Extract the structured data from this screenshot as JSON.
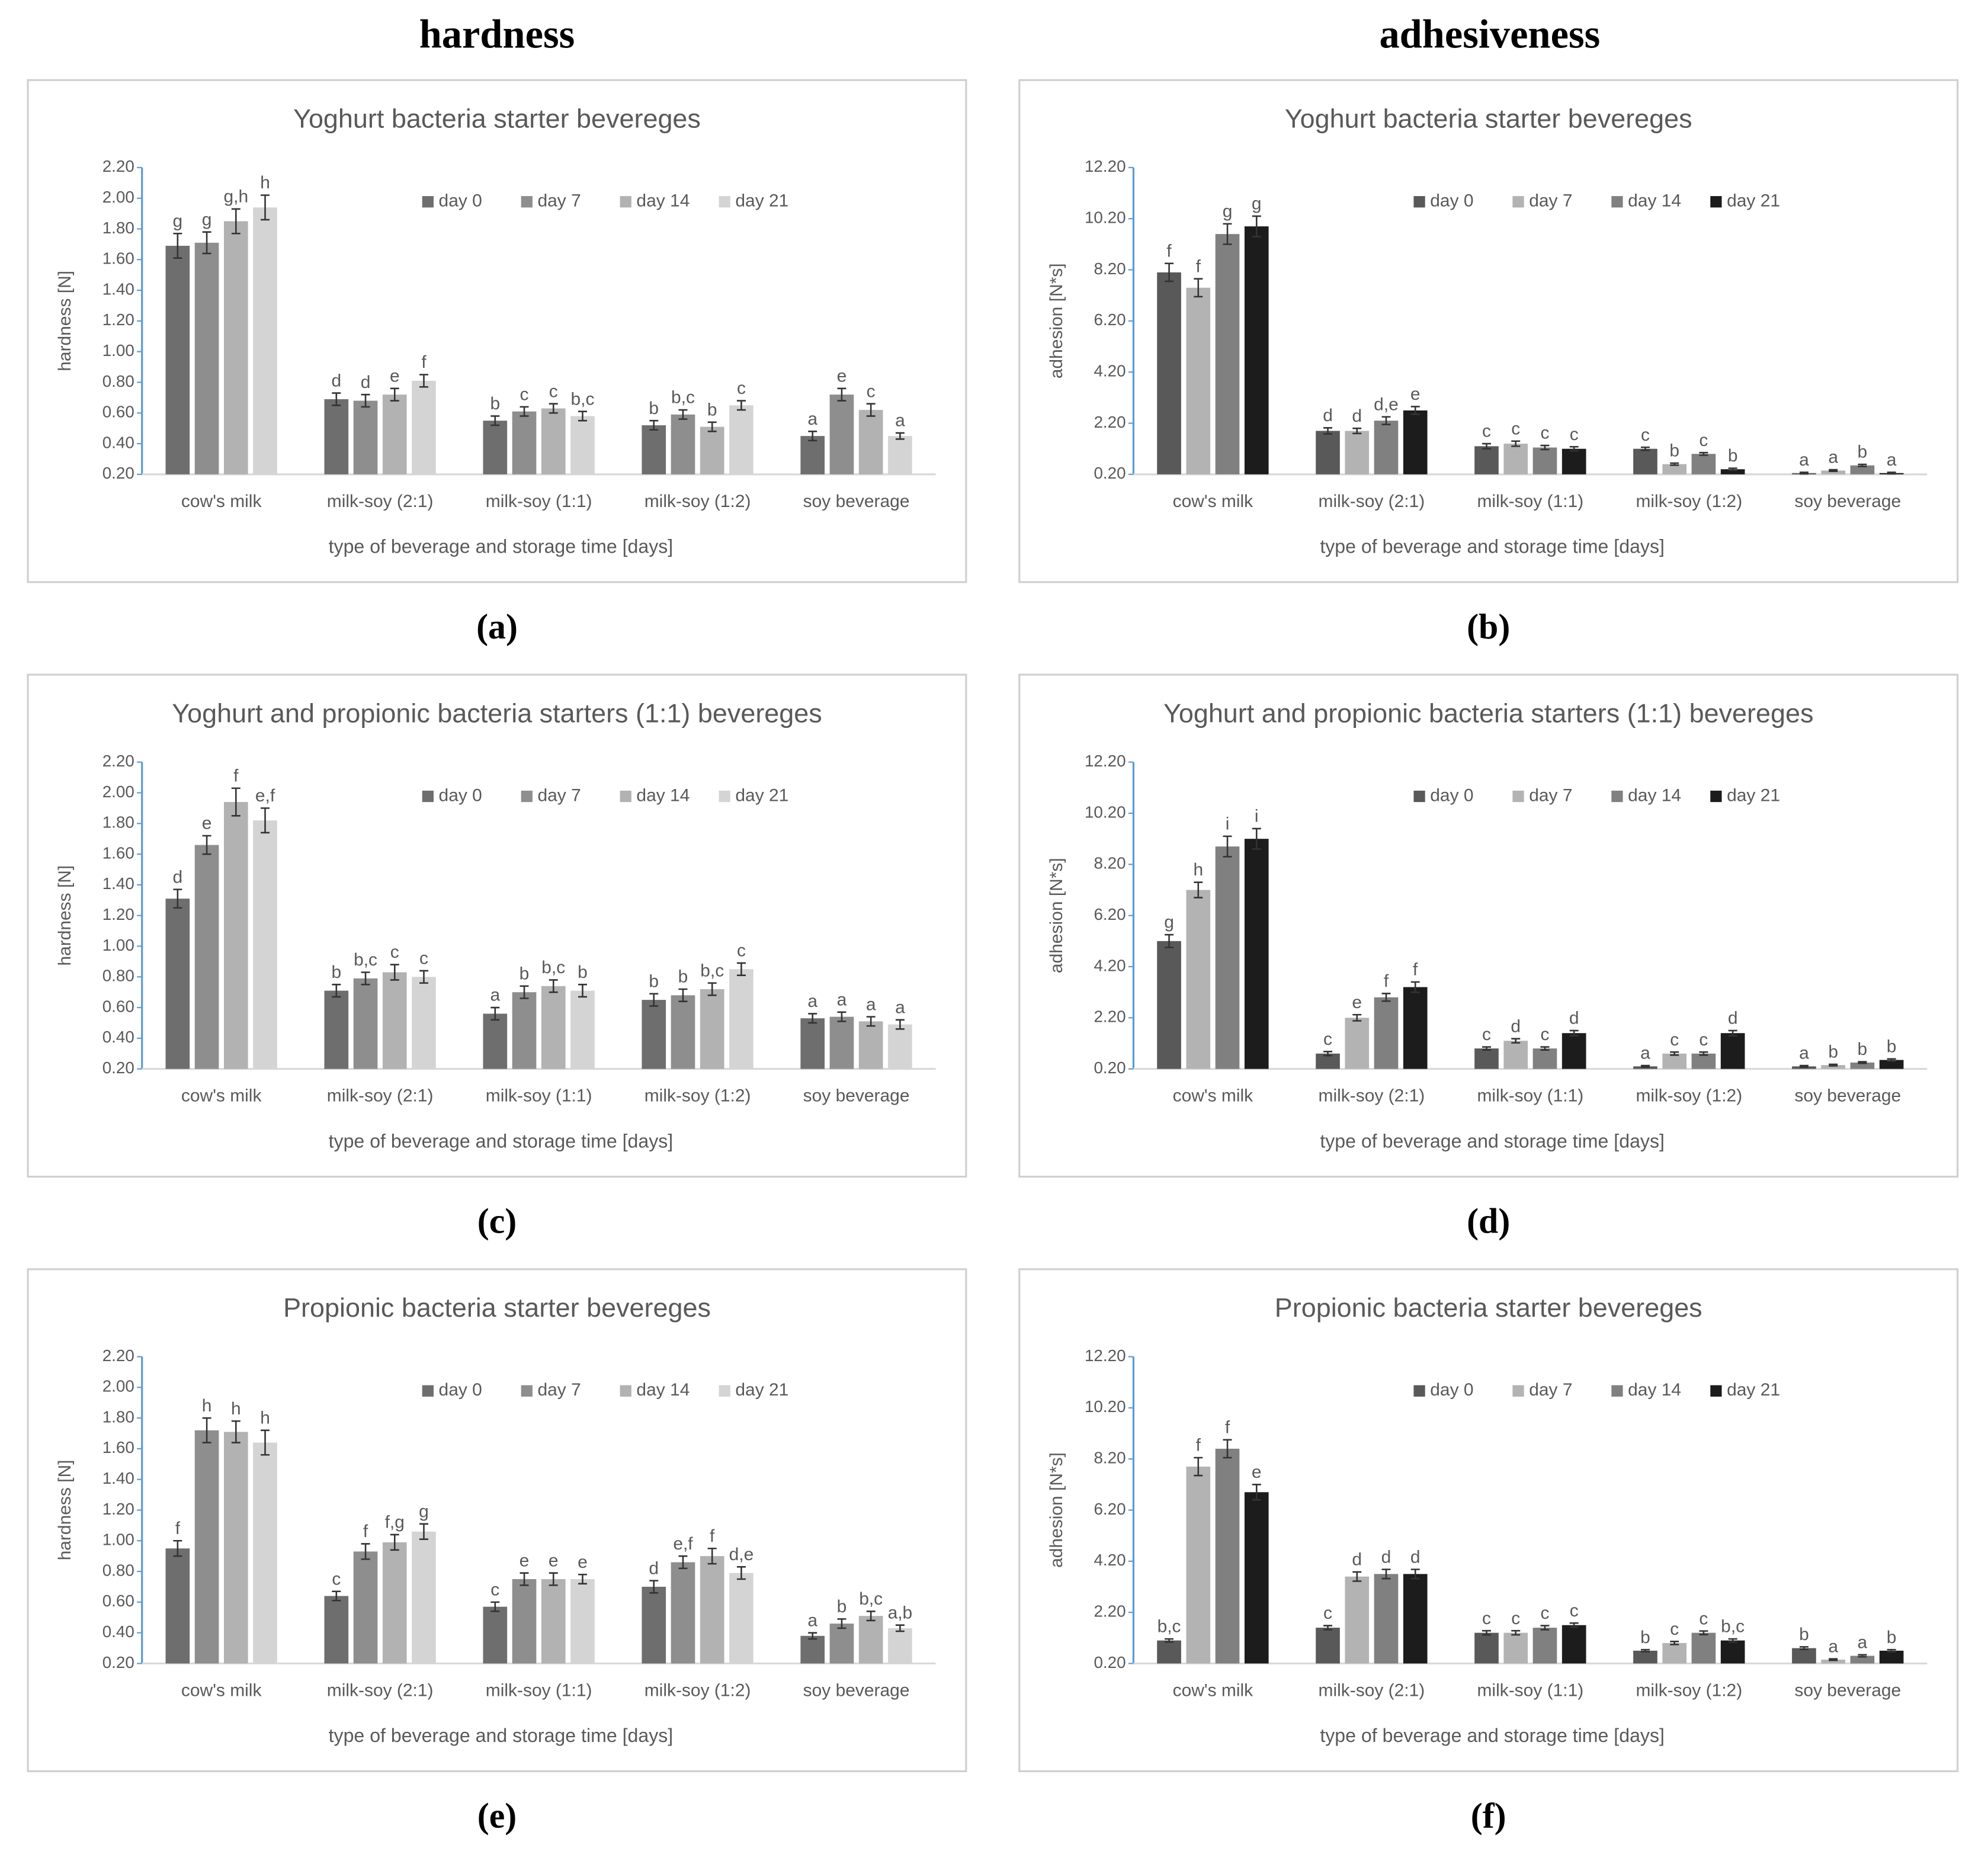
{
  "headings": [
    "hardness",
    "adhesiveness"
  ],
  "chart_data": [
    {
      "type": "bar",
      "caption": "(a)",
      "title": "Yoghurt bacteria starter bevereges",
      "xlabel": "type of beverage  and storage time [days]",
      "ylabel": "hardness [N]",
      "categories": [
        "cow's milk",
        "milk-soy (2:1)",
        "milk-soy (1:1)",
        "milk-soy (1:2)",
        "soy beverage"
      ],
      "ylim": [
        0.2,
        2.2
      ],
      "yticks": [
        {
          "value": 0.2,
          "label": "0.20"
        },
        {
          "value": 0.4,
          "label": "0.40"
        },
        {
          "value": 0.6,
          "label": "0.60"
        },
        {
          "value": 0.8,
          "label": "0.80"
        },
        {
          "value": 1.0,
          "label": "1.00"
        },
        {
          "value": 1.2,
          "label": "1.20"
        },
        {
          "value": 1.4,
          "label": "1.40"
        },
        {
          "value": 1.6,
          "label": "1.60"
        },
        {
          "value": 1.8,
          "label": "1.80"
        },
        {
          "value": 2.0,
          "label": "2.00"
        },
        {
          "value": 2.2,
          "label": "2.20"
        }
      ],
      "legend": "top",
      "grid": false,
      "series": [
        {
          "name": "day 0",
          "color": "#6e6e6e",
          "values": [
            1.69,
            0.69,
            0.55,
            0.52,
            0.45
          ],
          "errors": [
            0.08,
            0.04,
            0.03,
            0.03,
            0.03
          ],
          "letters": [
            "g",
            "d",
            "b",
            "b",
            "a"
          ]
        },
        {
          "name": "day 7",
          "color": "#8e8e8e",
          "values": [
            1.71,
            0.68,
            0.61,
            0.59,
            0.72
          ],
          "errors": [
            0.07,
            0.04,
            0.03,
            0.03,
            0.04
          ],
          "letters": [
            "g",
            "d",
            "c",
            "b,c",
            "e"
          ]
        },
        {
          "name": "day 14",
          "color": "#b2b2b2",
          "values": [
            1.85,
            0.72,
            0.63,
            0.51,
            0.62
          ],
          "errors": [
            0.08,
            0.04,
            0.03,
            0.03,
            0.04
          ],
          "letters": [
            "g,h",
            "e",
            "c",
            "b",
            "c"
          ]
        },
        {
          "name": "day 21",
          "color": "#d4d4d4",
          "values": [
            1.94,
            0.81,
            0.58,
            0.65,
            0.45
          ],
          "errors": [
            0.08,
            0.04,
            0.03,
            0.03,
            0.02
          ],
          "letters": [
            "h",
            "f",
            "b,c",
            "c",
            "a"
          ]
        }
      ]
    },
    {
      "type": "bar",
      "caption": "(b)",
      "title": "Yoghurt bacteria starter bevereges",
      "xlabel": "type of beverage  and storage time [days]",
      "ylabel": "adhesion [N*s]",
      "categories": [
        "cow's milk",
        "milk-soy (2:1)",
        "milk-soy (1:1)",
        "milk-soy (1:2)",
        "soy beverage"
      ],
      "ylim": [
        0.2,
        12.2
      ],
      "yticks": [
        {
          "value": 0.2,
          "label": "0.20"
        },
        {
          "value": 2.2,
          "label": "2.20"
        },
        {
          "value": 4.2,
          "label": "4.20"
        },
        {
          "value": 6.2,
          "label": "6.20"
        },
        {
          "value": 8.2,
          "label": "8.20"
        },
        {
          "value": 10.2,
          "label": "10.20"
        },
        {
          "value": 12.2,
          "label": "12.20"
        }
      ],
      "legend": "top",
      "grid": false,
      "series": [
        {
          "name": "day 0",
          "color": "#595959",
          "values": [
            8.1,
            1.9,
            1.3,
            1.2,
            0.25
          ],
          "errors": [
            0.35,
            0.12,
            0.1,
            0.06,
            0.03
          ],
          "letters": [
            "f",
            "d",
            "c",
            "c",
            "a"
          ]
        },
        {
          "name": "day 7",
          "color": "#b3b3b3",
          "values": [
            7.5,
            1.9,
            1.4,
            0.6,
            0.35
          ],
          "errors": [
            0.35,
            0.1,
            0.1,
            0.04,
            0.03
          ],
          "letters": [
            "f",
            "d",
            "c",
            "b",
            "a"
          ]
        },
        {
          "name": "day 14",
          "color": "#808080",
          "values": [
            9.6,
            2.3,
            1.25,
            1.0,
            0.55
          ],
          "errors": [
            0.4,
            0.15,
            0.08,
            0.05,
            0.04
          ],
          "letters": [
            "g",
            "d,e",
            "c",
            "c",
            "b"
          ]
        },
        {
          "name": "day 21",
          "color": "#1c1c1c",
          "values": [
            9.9,
            2.7,
            1.2,
            0.4,
            0.25
          ],
          "errors": [
            0.4,
            0.15,
            0.08,
            0.04,
            0.03
          ],
          "letters": [
            "g",
            "e",
            "c",
            "b",
            "a"
          ]
        }
      ]
    },
    {
      "type": "bar",
      "caption": "(c)",
      "title": "Yoghurt and propionic bacteria starters (1:1) bevereges",
      "xlabel": "type of beverage  and storage time [days]",
      "ylabel": "hardness [N]",
      "categories": [
        "cow's milk",
        "milk-soy (2:1)",
        "milk-soy (1:1)",
        "milk-soy (1:2)",
        "soy beverage"
      ],
      "ylim": [
        0.2,
        2.2
      ],
      "yticks": [
        {
          "value": 0.2,
          "label": "0.20"
        },
        {
          "value": 0.4,
          "label": "0.40"
        },
        {
          "value": 0.6,
          "label": "0.60"
        },
        {
          "value": 0.8,
          "label": "0.80"
        },
        {
          "value": 1.0,
          "label": "1.00"
        },
        {
          "value": 1.2,
          "label": "1.20"
        },
        {
          "value": 1.4,
          "label": "1.40"
        },
        {
          "value": 1.6,
          "label": "1.60"
        },
        {
          "value": 1.8,
          "label": "1.80"
        },
        {
          "value": 2.0,
          "label": "2.00"
        },
        {
          "value": 2.2,
          "label": "2.20"
        }
      ],
      "legend": "top",
      "grid": false,
      "series": [
        {
          "name": "day 0",
          "color": "#6e6e6e",
          "values": [
            1.31,
            0.71,
            0.56,
            0.65,
            0.53
          ],
          "errors": [
            0.06,
            0.04,
            0.04,
            0.04,
            0.03
          ],
          "letters": [
            "d",
            "b",
            "a",
            "b",
            "a"
          ]
        },
        {
          "name": "day 7",
          "color": "#8e8e8e",
          "values": [
            1.66,
            0.79,
            0.7,
            0.68,
            0.54
          ],
          "errors": [
            0.06,
            0.04,
            0.04,
            0.04,
            0.03
          ],
          "letters": [
            "e",
            "b,c",
            "b",
            "b",
            "a"
          ]
        },
        {
          "name": "day 14",
          "color": "#b2b2b2",
          "values": [
            1.94,
            0.83,
            0.74,
            0.72,
            0.51
          ],
          "errors": [
            0.09,
            0.05,
            0.04,
            0.04,
            0.03
          ],
          "letters": [
            "f",
            "c",
            "b,c",
            "b,c",
            "a"
          ]
        },
        {
          "name": "day 21",
          "color": "#d4d4d4",
          "values": [
            1.82,
            0.8,
            0.71,
            0.85,
            0.49
          ],
          "errors": [
            0.08,
            0.04,
            0.04,
            0.04,
            0.03
          ],
          "letters": [
            "e,f",
            "c",
            "b",
            "c",
            "a"
          ]
        }
      ]
    },
    {
      "type": "bar",
      "caption": "(d)",
      "title": "Yoghurt and propionic bacteria starters (1:1) bevereges",
      "xlabel": "type of beverage  and storage time [days]",
      "ylabel": "adhesion [N*s]",
      "categories": [
        "cow's milk",
        "milk-soy (2:1)",
        "milk-soy (1:1)",
        "milk-soy (1:2)",
        "soy beverage"
      ],
      "ylim": [
        0.2,
        12.2
      ],
      "yticks": [
        {
          "value": 0.2,
          "label": "0.20"
        },
        {
          "value": 2.2,
          "label": "2.20"
        },
        {
          "value": 4.2,
          "label": "4.20"
        },
        {
          "value": 6.2,
          "label": "6.20"
        },
        {
          "value": 8.2,
          "label": "8.20"
        },
        {
          "value": 10.2,
          "label": "10.20"
        },
        {
          "value": 12.2,
          "label": "12.20"
        }
      ],
      "legend": "top",
      "grid": false,
      "series": [
        {
          "name": "day 0",
          "color": "#595959",
          "values": [
            5.2,
            0.8,
            1.0,
            0.3,
            0.3
          ],
          "errors": [
            0.25,
            0.08,
            0.06,
            0.03,
            0.03
          ],
          "letters": [
            "g",
            "c",
            "c",
            "a",
            "a"
          ]
        },
        {
          "name": "day 7",
          "color": "#b3b3b3",
          "values": [
            7.2,
            2.2,
            1.3,
            0.8,
            0.35
          ],
          "errors": [
            0.3,
            0.12,
            0.08,
            0.06,
            0.03
          ],
          "letters": [
            "h",
            "e",
            "d",
            "c",
            "b"
          ]
        },
        {
          "name": "day 14",
          "color": "#808080",
          "values": [
            8.9,
            3.0,
            1.0,
            0.8,
            0.45
          ],
          "errors": [
            0.4,
            0.15,
            0.06,
            0.06,
            0.03
          ],
          "letters": [
            "i",
            "f",
            "c",
            "c",
            "b"
          ]
        },
        {
          "name": "day 21",
          "color": "#1c1c1c",
          "values": [
            9.2,
            3.4,
            1.6,
            1.6,
            0.55
          ],
          "errors": [
            0.4,
            0.2,
            0.1,
            0.1,
            0.04
          ],
          "letters": [
            "i",
            "f",
            "d",
            "d",
            "b"
          ]
        }
      ]
    },
    {
      "type": "bar",
      "caption": "(e)",
      "title": "Propionic bacteria starter bevereges",
      "xlabel": "type of beverage  and storage time [days]",
      "ylabel": "hardness [N]",
      "categories": [
        "cow's milk",
        "milk-soy (2:1)",
        "milk-soy (1:1)",
        "milk-soy (1:2)",
        "soy beverage"
      ],
      "ylim": [
        0.2,
        2.2
      ],
      "yticks": [
        {
          "value": 0.2,
          "label": "0.20"
        },
        {
          "value": 0.4,
          "label": "0.40"
        },
        {
          "value": 0.6,
          "label": "0.60"
        },
        {
          "value": 0.8,
          "label": "0.80"
        },
        {
          "value": 1.0,
          "label": "1.00"
        },
        {
          "value": 1.2,
          "label": "1.20"
        },
        {
          "value": 1.4,
          "label": "1.40"
        },
        {
          "value": 1.6,
          "label": "1.60"
        },
        {
          "value": 1.8,
          "label": "1.80"
        },
        {
          "value": 2.0,
          "label": "2.00"
        },
        {
          "value": 2.2,
          "label": "2.20"
        }
      ],
      "legend": "top",
      "grid": false,
      "series": [
        {
          "name": "day 0",
          "color": "#6e6e6e",
          "values": [
            0.95,
            0.64,
            0.57,
            0.7,
            0.38
          ],
          "errors": [
            0.05,
            0.03,
            0.03,
            0.04,
            0.02
          ],
          "letters": [
            "f",
            "c",
            "c",
            "d",
            "a"
          ]
        },
        {
          "name": "day 7",
          "color": "#8e8e8e",
          "values": [
            1.72,
            0.93,
            0.75,
            0.86,
            0.46
          ],
          "errors": [
            0.08,
            0.05,
            0.04,
            0.04,
            0.03
          ],
          "letters": [
            "h",
            "f",
            "e",
            "e,f",
            "b"
          ]
        },
        {
          "name": "day 14",
          "color": "#b2b2b2",
          "values": [
            1.71,
            0.99,
            0.75,
            0.9,
            0.51
          ],
          "errors": [
            0.07,
            0.05,
            0.04,
            0.05,
            0.03
          ],
          "letters": [
            "h",
            "f,g",
            "e",
            "f",
            "b,c"
          ]
        },
        {
          "name": "day 21",
          "color": "#d4d4d4",
          "values": [
            1.64,
            1.06,
            0.75,
            0.79,
            0.43
          ],
          "errors": [
            0.08,
            0.05,
            0.03,
            0.04,
            0.02
          ],
          "letters": [
            "h",
            "g",
            "e",
            "d,e",
            "a,b"
          ]
        }
      ]
    },
    {
      "type": "bar",
      "caption": "(f)",
      "title": "Propionic bacteria starter bevereges",
      "xlabel": "type of beverage  and storage time [days]",
      "ylabel": "adhesion [N*s]",
      "categories": [
        "cow's milk",
        "milk-soy (2:1)",
        "milk-soy (1:1)",
        "milk-soy (1:2)",
        "soy beverage"
      ],
      "ylim": [
        0.2,
        12.2
      ],
      "yticks": [
        {
          "value": 0.2,
          "label": "0.20"
        },
        {
          "value": 2.2,
          "label": "2.20"
        },
        {
          "value": 4.2,
          "label": "4.20"
        },
        {
          "value": 6.2,
          "label": "6.20"
        },
        {
          "value": 8.2,
          "label": "8.20"
        },
        {
          "value": 10.2,
          "label": "10.20"
        },
        {
          "value": 12.2,
          "label": "12.20"
        }
      ],
      "legend": "top",
      "grid": false,
      "series": [
        {
          "name": "day 0",
          "color": "#595959",
          "values": [
            1.1,
            1.6,
            1.4,
            0.7,
            0.8
          ],
          "errors": [
            0.06,
            0.08,
            0.08,
            0.04,
            0.05
          ],
          "letters": [
            "b,c",
            "c",
            "c",
            "b",
            "b"
          ]
        },
        {
          "name": "day 7",
          "color": "#b3b3b3",
          "values": [
            7.9,
            3.6,
            1.4,
            1.0,
            0.35
          ],
          "errors": [
            0.35,
            0.18,
            0.08,
            0.06,
            0.03
          ],
          "letters": [
            "f",
            "d",
            "c",
            "c",
            "a"
          ]
        },
        {
          "name": "day 14",
          "color": "#808080",
          "values": [
            8.6,
            3.7,
            1.6,
            1.4,
            0.5
          ],
          "errors": [
            0.35,
            0.18,
            0.08,
            0.07,
            0.04
          ],
          "letters": [
            "f",
            "d",
            "c",
            "c",
            "a"
          ]
        },
        {
          "name": "day 21",
          "color": "#1c1c1c",
          "values": [
            6.9,
            3.7,
            1.7,
            1.1,
            0.7
          ],
          "errors": [
            0.3,
            0.18,
            0.08,
            0.06,
            0.04
          ],
          "letters": [
            "e",
            "d",
            "c",
            "b,c",
            "b"
          ]
        }
      ]
    }
  ]
}
